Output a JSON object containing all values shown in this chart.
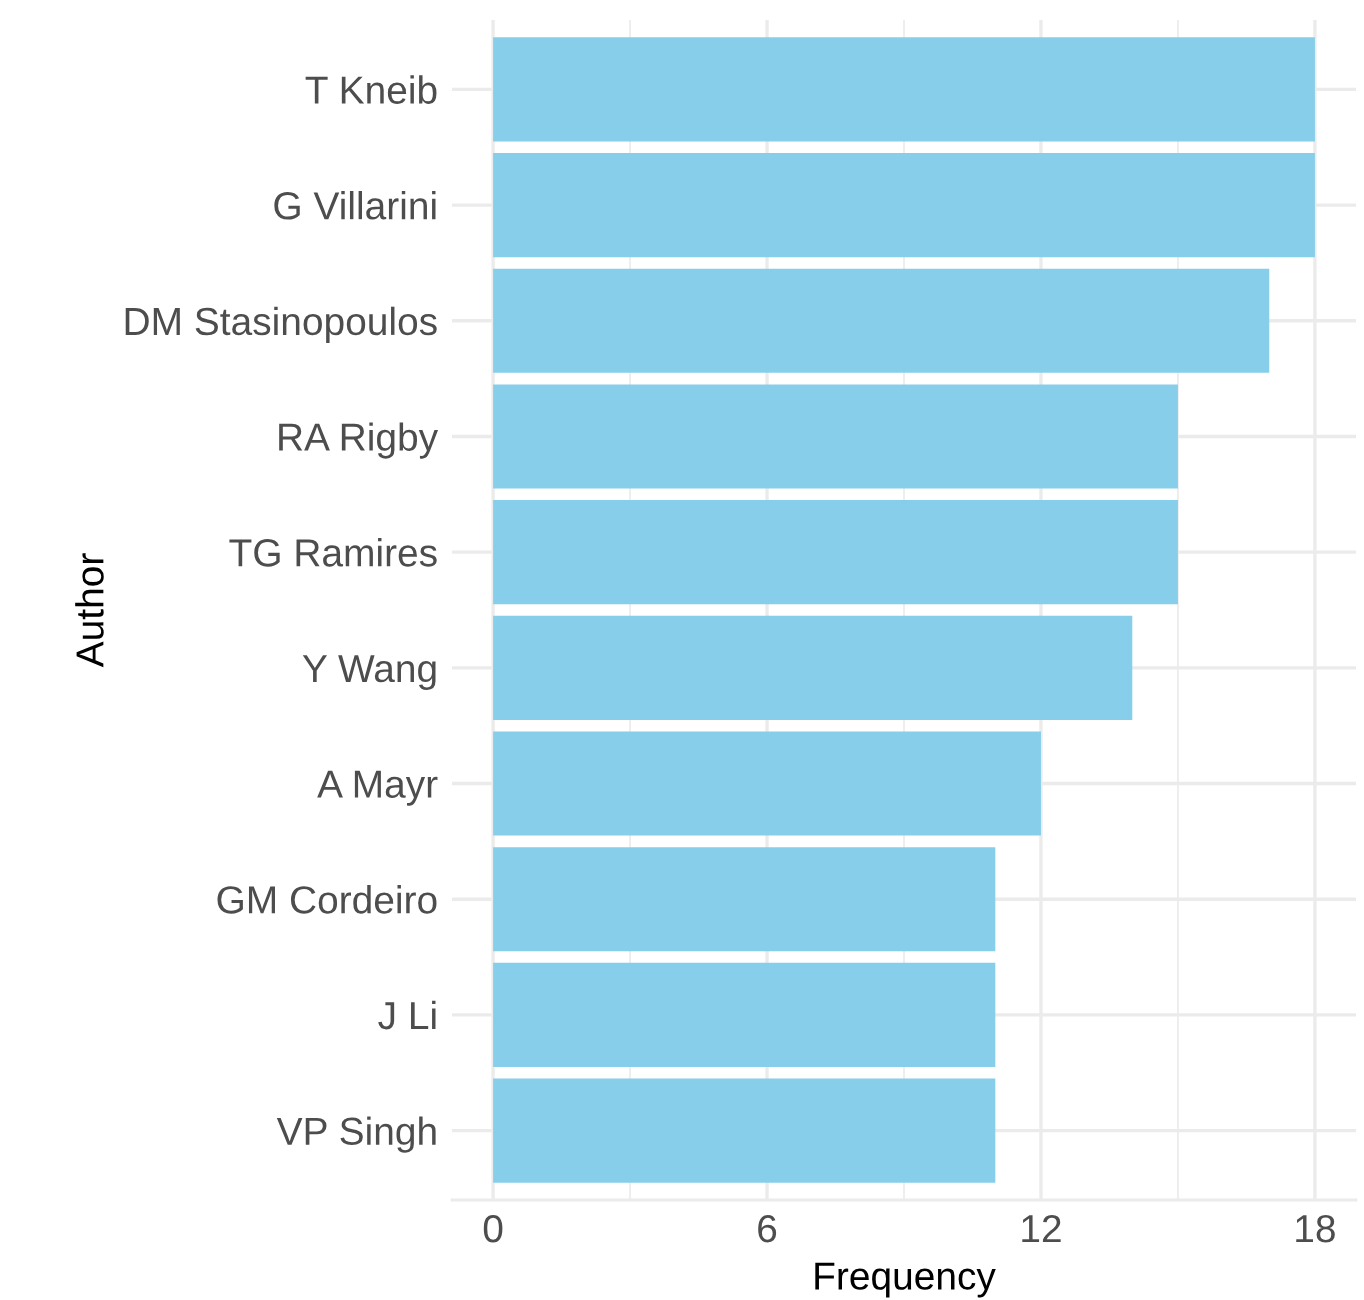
{
  "chart_data": {
    "type": "bar",
    "orientation": "horizontal",
    "xlabel": "Frequency",
    "ylabel": "Author",
    "categories": [
      "T Kneib",
      "G Villarini",
      "DM Stasinopoulos",
      "RA Rigby",
      "TG Ramires",
      "Y Wang",
      "A Mayr",
      "GM Cordeiro",
      "J Li",
      "VP Singh"
    ],
    "values": [
      18,
      18,
      17,
      15,
      15,
      14,
      12,
      11,
      11,
      11
    ],
    "color": "#87ceeb",
    "xlim": [
      -0.9,
      18.9
    ],
    "xticks": [
      0,
      {
        "value": 3,
        "label": null
      },
      6,
      {
        "value": 9,
        "label": null
      },
      12,
      {
        "value": 15,
        "label": null
      },
      18
    ],
    "grid": true
  }
}
